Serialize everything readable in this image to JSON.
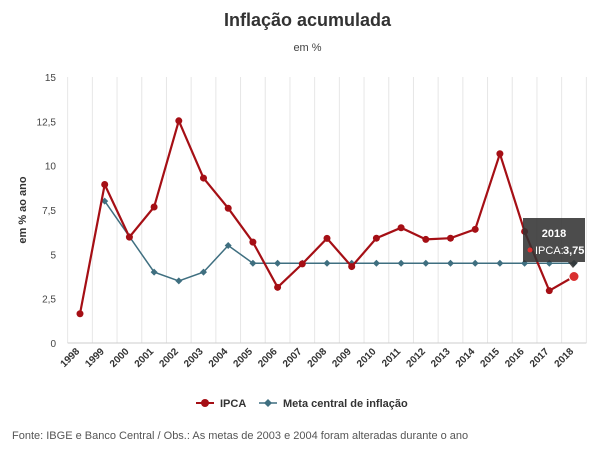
{
  "chart_data": {
    "type": "line",
    "title": "Inflação acumulada",
    "subtitle": "em %",
    "ylabel": "em % ao ano",
    "xlabel": "",
    "ylim": [
      0,
      15
    ],
    "yticks": [
      0,
      2.5,
      5,
      7.5,
      10,
      12.5,
      15
    ],
    "ytick_labels": [
      "0",
      "2,5",
      "5",
      "7,5",
      "10",
      "12,5",
      "15"
    ],
    "categories": [
      "1998",
      "1999",
      "2000",
      "2001",
      "2002",
      "2003",
      "2004",
      "2005",
      "2006",
      "2007",
      "2008",
      "2009",
      "2010",
      "2011",
      "2012",
      "2013",
      "2014",
      "2015",
      "2016",
      "2017",
      "2018"
    ],
    "grid": "vertical",
    "legend_position": "bottom",
    "series": [
      {
        "name": "IPCA",
        "color": "#a50f15",
        "marker": "circle",
        "values": [
          1.65,
          8.94,
          5.97,
          7.67,
          12.53,
          9.3,
          7.6,
          5.69,
          3.14,
          4.46,
          5.9,
          4.31,
          5.91,
          6.5,
          5.84,
          5.91,
          6.41,
          10.67,
          6.29,
          2.95,
          3.75
        ]
      },
      {
        "name": "Meta central de inflação",
        "color": "#3f6f80",
        "marker": "diamond",
        "values": [
          null,
          8,
          6,
          4,
          3.5,
          4,
          5.5,
          4.5,
          4.5,
          4.5,
          4.5,
          4.5,
          4.5,
          4.5,
          4.5,
          4.5,
          4.5,
          4.5,
          4.5,
          4.5,
          4.5
        ]
      }
    ],
    "tooltip": {
      "year": "2018",
      "label": "IPCA:",
      "value": "3,75"
    }
  },
  "footer": "Fonte: IBGE e Banco Central / Obs.: As metas de 2003 e 2004 foram alteradas durante o ano"
}
